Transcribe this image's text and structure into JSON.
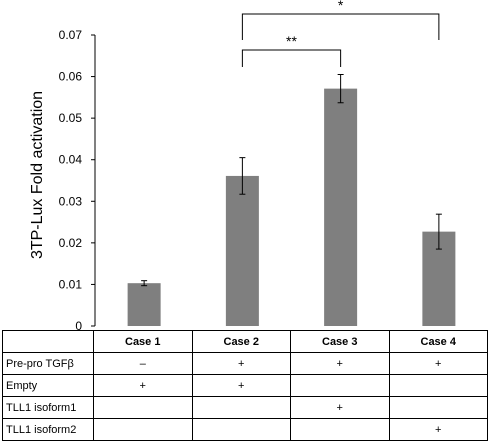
{
  "chart_data": {
    "type": "bar",
    "categories": [
      "Case 1",
      "Case 2",
      "Case 3",
      "Case 4"
    ],
    "values": [
      0.0103,
      0.0361,
      0.0571,
      0.0227
    ],
    "errors": [
      0.0006,
      0.0044,
      0.0034,
      0.0042
    ],
    "ylabel": "3TP-Lux Fold activation",
    "ylim": [
      0,
      0.07
    ],
    "yticks": [
      "0",
      "0.01",
      "0.02",
      "0.03",
      "0.04",
      "0.05",
      "0.06",
      "0.07"
    ],
    "bar_color": "#7f7f7f",
    "grid": false,
    "significance": [
      {
        "from": "Case 2",
        "to": "Case 3",
        "label": "**"
      },
      {
        "from": "Case 2",
        "to": "Case 4",
        "label": "*"
      }
    ]
  },
  "table": {
    "headers": [
      "Case 1",
      "Case 2",
      "Case 3",
      "Case 4"
    ],
    "rows": [
      {
        "label": "Pre-pro TGFβ",
        "cells": [
          "–",
          "+",
          "+",
          "+"
        ]
      },
      {
        "label": "Empty",
        "cells": [
          "+",
          "+",
          "",
          ""
        ]
      },
      {
        "label": "TLL1 isoform1",
        "cells": [
          "",
          "",
          "+",
          ""
        ]
      },
      {
        "label": "TLL1 isoform2",
        "cells": [
          "",
          "",
          "",
          "+"
        ]
      }
    ]
  }
}
